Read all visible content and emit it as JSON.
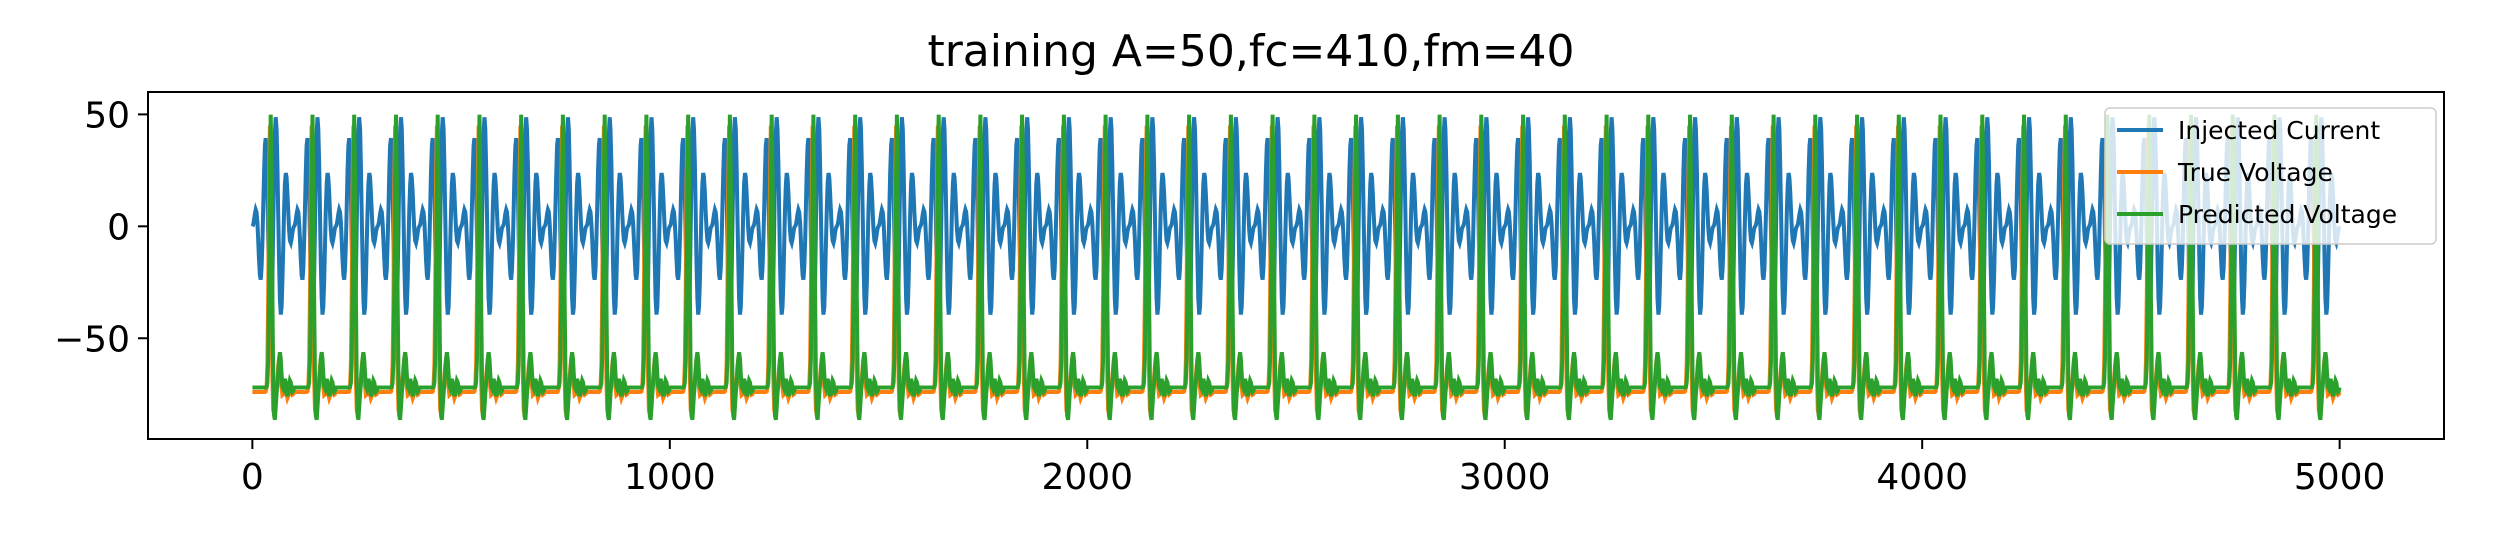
{
  "chart_data": {
    "type": "line",
    "title": "training A=50,fc=410,fm=40",
    "xlabel": "",
    "ylabel": "",
    "xlim": [
      -250,
      5250
    ],
    "ylim": [
      -95,
      60
    ],
    "x_ticks": [
      0,
      1000,
      2000,
      3000,
      4000,
      5000
    ],
    "x_tick_labels": [
      "0",
      "1000",
      "2000",
      "3000",
      "4000",
      "5000"
    ],
    "y_ticks": [
      50,
      0,
      -50
    ],
    "y_tick_labels": [
      "50",
      "0",
      "−50"
    ],
    "grid": false,
    "legend_position": "upper-right",
    "x_range": [
      0,
      5000
    ],
    "modulation_period": 100,
    "series": [
      {
        "name": "Injected Current",
        "color": "#1f77b4",
        "description_values": {
          "amplitude": 50,
          "carrier_frequency_label": "fc=410",
          "modulation_frequency_label": "fm=40"
        }
      },
      {
        "name": "True Voltage",
        "color": "#ff7f0e",
        "baseline": -74,
        "spike_peak": 45,
        "spike_trough": -85
      },
      {
        "name": "Predicted Voltage",
        "color": "#2ca02c",
        "baseline": -72,
        "spike_peak": 50,
        "spike_trough": -88
      }
    ]
  }
}
